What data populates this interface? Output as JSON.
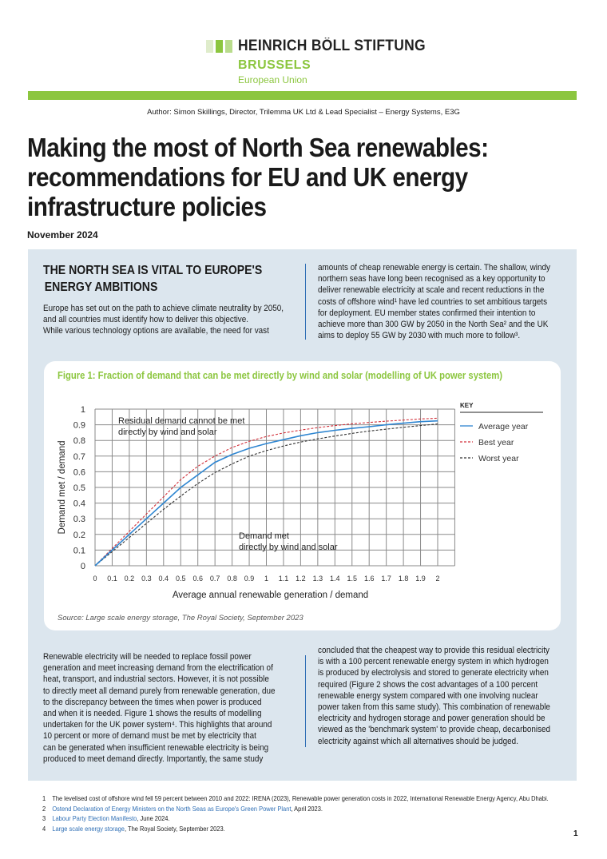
{
  "logo": {
    "name": "HEINRICH BÖLL STIFTUNG",
    "city": "BRUSSELS",
    "region": "European Union",
    "colors": [
      "#dfeccb",
      "#8cc63f",
      "#b9dc8c"
    ]
  },
  "author": "Author: Simon Skillings, Director, Trilemma UK Ltd & Lead Specialist – Energy Systems, E3G",
  "title_lines": [
    "Making the most of North Sea renewables:",
    "recommendations for EU and UK energy",
    "infrastructure policies"
  ],
  "date": "November 2024",
  "section": {
    "heading_lines": [
      "THE NORTH SEA IS VITAL TO EUROPE'S",
      "ENERGY AMBITIONS"
    ],
    "left_lines": [
      "Europe has set out on the path to achieve climate neutrality by 2050,",
      "and all countries must identify how to deliver this objective.",
      "While various technology options are available, the need for vast"
    ],
    "right_lines": [
      "amounts of cheap renewable energy is certain. The shallow, windy",
      "northern seas have long been recognised as a key opportunity to",
      "deliver renewable electricity at scale and recent reductions in the",
      "costs of offshore wind¹ have led countries to set ambitious targets",
      "for deployment. EU member states confirmed their intention to",
      "achieve more than 300 GW by 2050 in the North Sea² and the UK",
      "aims to deploy 55 GW by 2030 with much more to follow³."
    ]
  },
  "figure": {
    "title": "Figure 1: Fraction of demand that can be met directly by wind and solar (modelling of UK power system)",
    "source": "Source: Large scale energy storage, The Royal Society, September 2023",
    "key_label": "KEY",
    "annotation_upper": [
      "Residual demand cannot be met",
      "directly by wind and solar"
    ],
    "annotation_lower": [
      "Demand met",
      "directly by wind and solar"
    ]
  },
  "chart_data": {
    "type": "line",
    "xlabel": "Average annual renewable generation / demand",
    "ylabel": "Demand met / demand",
    "xlim": [
      0,
      2
    ],
    "ylim": [
      0,
      1
    ],
    "grid": true,
    "legend_position": "right",
    "x": [
      0,
      0.1,
      0.2,
      0.3,
      0.4,
      0.5,
      0.6,
      0.7,
      0.8,
      0.9,
      1,
      1.1,
      1.2,
      1.3,
      1.4,
      1.5,
      1.6,
      1.7,
      1.8,
      1.9,
      2
    ],
    "x_tick_labels": [
      "0",
      "0.1",
      "0.2",
      "0.3",
      "0.4",
      "0.5",
      "0.6",
      "0.7",
      "0.8",
      "0.9",
      "1",
      "1.1",
      "1.2",
      "1.3",
      "1.4",
      "1.5",
      "1.6",
      "1.7",
      "1.8",
      "1.9",
      "2"
    ],
    "y_tick_labels": [
      "0",
      "0.1",
      "0.2",
      "0.3",
      "0.4",
      "0.5",
      "0.6",
      "0.7",
      "0.8",
      "0.9",
      "1"
    ],
    "series": [
      {
        "name": "Average year",
        "color": "#2f86d1",
        "style": "solid",
        "values": [
          0,
          0.1,
          0.2,
          0.3,
          0.4,
          0.5,
          0.58,
          0.66,
          0.71,
          0.75,
          0.78,
          0.805,
          0.83,
          0.85,
          0.865,
          0.877,
          0.888,
          0.9,
          0.91,
          0.92,
          0.925
        ]
      },
      {
        "name": "Best year",
        "color": "#d2323c",
        "style": "dashed",
        "values": [
          0,
          0.11,
          0.22,
          0.33,
          0.44,
          0.55,
          0.635,
          0.7,
          0.755,
          0.795,
          0.825,
          0.848,
          0.866,
          0.882,
          0.895,
          0.906,
          0.915,
          0.923,
          0.93,
          0.937,
          0.942
        ]
      },
      {
        "name": "Worst year",
        "color": "#333333",
        "style": "dashed",
        "values": [
          0,
          0.09,
          0.18,
          0.27,
          0.36,
          0.445,
          0.525,
          0.595,
          0.65,
          0.7,
          0.735,
          0.765,
          0.79,
          0.81,
          0.828,
          0.845,
          0.86,
          0.872,
          0.884,
          0.895,
          0.905
        ]
      }
    ]
  },
  "body": {
    "left_lines": [
      "Renewable electricity will be needed to replace fossil power",
      "generation and meet increasing demand from the electrification of",
      "heat, transport, and industrial sectors. However, it is not possible",
      "to directly meet all demand purely from renewable generation, due",
      "to the discrepancy between the times when power is produced",
      "and when it is needed. Figure 1 shows the results of modelling",
      "undertaken for the UK power system⁴. This highlights that around",
      "10 percent or more of demand must be met by electricity that",
      "can be generated when insufficient renewable electricity is being",
      "produced to meet demand directly. Importantly, the same study"
    ],
    "right_lines": [
      "concluded that the cheapest way to provide this residual electricity",
      "is with a 100 percent renewable energy system in which hydrogen",
      "is produced by electrolysis and stored to generate electricity when",
      "required (Figure 2 shows the cost advantages of a 100 percent",
      "renewable energy system compared with one involving nuclear",
      "power taken from this same study). This combination of renewable",
      "electricity and hydrogen storage and power generation should be",
      "viewed as the 'benchmark system' to provide cheap, decarbonised",
      "electricity against which all alternatives should be judged."
    ]
  },
  "footnotes": [
    {
      "n": "1",
      "link": "",
      "text": "The levelised cost of offshore wind fell 59 percent between 2010 and 2022: IRENA (2023), Renewable power generation costs in 2022, International Renewable Energy Agency, Abu Dhabi."
    },
    {
      "n": "2",
      "link": "Ostend Declaration of Energy Ministers on the North Seas as Europe's Green Power Plant",
      "text": ", April 2023."
    },
    {
      "n": "3",
      "link": "Labour Party Election Manifesto",
      "text": ", June 2024."
    },
    {
      "n": "4",
      "link": "Large scale energy storage",
      "text": ", The Royal Society, September 2023."
    }
  ],
  "page_number": "1"
}
